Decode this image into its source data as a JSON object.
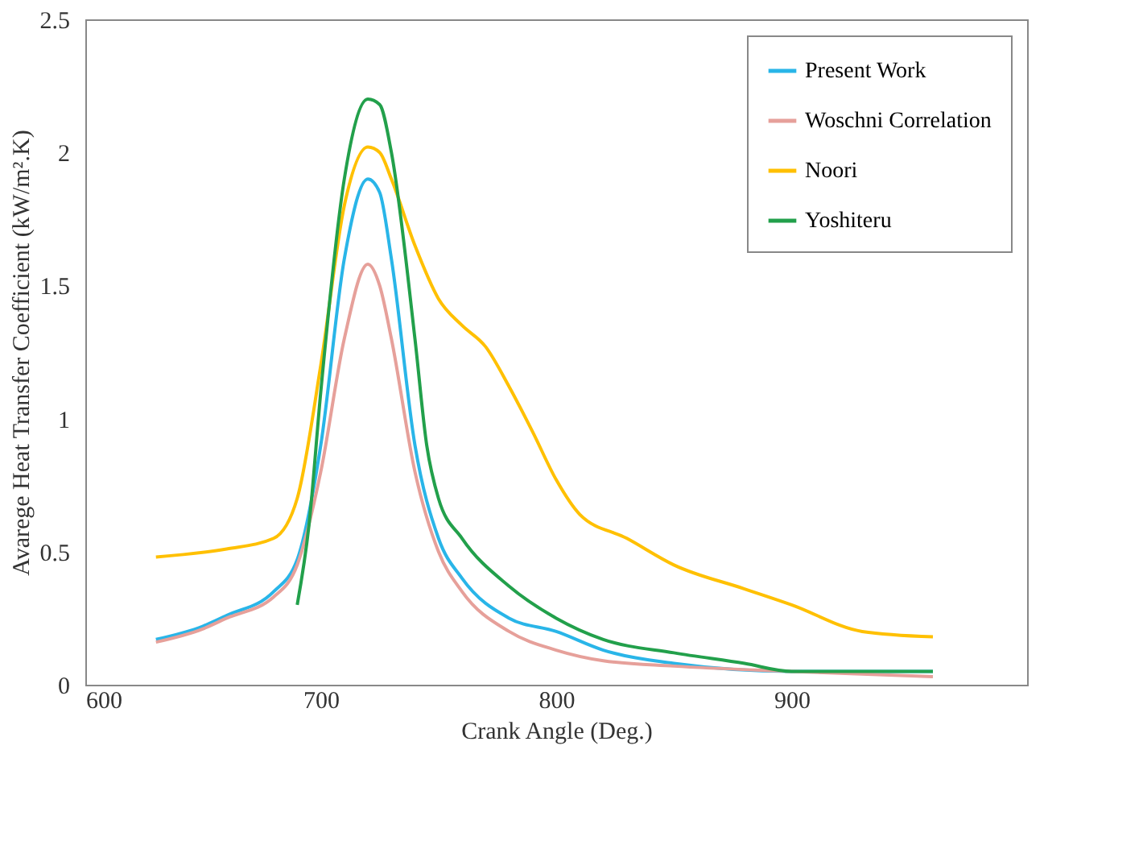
{
  "chart_data": {
    "type": "line",
    "xlabel": "Crank Angle (Deg.)",
    "ylabel": "Avarege Heat Transfer Coefficient (kW/m².K)",
    "xlim": [
      600,
      1000
    ],
    "xticks": [
      600,
      700,
      800,
      900
    ],
    "ylim": [
      0,
      2.5
    ],
    "yticks": [
      0,
      0.5,
      1,
      1.5,
      2,
      2.5
    ],
    "grid": false,
    "legend": "top right",
    "marker": "none",
    "line_style": "solid",
    "series": [
      {
        "name": "Present Work",
        "color": "#29b5e8",
        "x": [
          630,
          650,
          660,
          680,
          690,
          700,
          710,
          720,
          725,
          730,
          740,
          750,
          760,
          780,
          800,
          820,
          850,
          900,
          930,
          960
        ],
        "values": [
          0.17,
          0.22,
          0.26,
          0.35,
          0.47,
          0.9,
          1.6,
          1.9,
          1.85,
          1.6,
          0.9,
          0.55,
          0.4,
          0.25,
          0.2,
          0.13,
          0.08,
          0.05,
          0.05,
          0.05
        ]
      },
      {
        "name": "Woschni Correlation",
        "color": "#e6a09a",
        "x": [
          630,
          650,
          660,
          680,
          690,
          700,
          710,
          720,
          725,
          730,
          740,
          750,
          760,
          780,
          800,
          820,
          850,
          900,
          960
        ],
        "values": [
          0.16,
          0.21,
          0.25,
          0.33,
          0.45,
          0.8,
          1.3,
          1.58,
          1.5,
          1.3,
          0.8,
          0.5,
          0.35,
          0.2,
          0.13,
          0.09,
          0.07,
          0.05,
          0.03
        ]
      },
      {
        "name": "Noori",
        "color": "#ffc000",
        "x": [
          630,
          660,
          680,
          690,
          700,
          710,
          720,
          725,
          730,
          740,
          750,
          760,
          770,
          780,
          790,
          800,
          810,
          830,
          850,
          880,
          900,
          930,
          960
        ],
        "values": [
          0.48,
          0.51,
          0.55,
          0.7,
          1.2,
          1.8,
          2.02,
          2.0,
          1.9,
          1.65,
          1.45,
          1.35,
          1.27,
          1.12,
          0.95,
          0.77,
          0.64,
          0.55,
          0.45,
          0.36,
          0.3,
          0.2,
          0.18
        ]
      },
      {
        "name": "Yoshiteru",
        "color": "#22a04b",
        "x": [
          690,
          695,
          700,
          710,
          720,
          725,
          730,
          740,
          745,
          750,
          760,
          780,
          800,
          820,
          850,
          880,
          900,
          930,
          960
        ],
        "values": [
          0.3,
          0.6,
          1.1,
          1.9,
          2.2,
          2.18,
          2.0,
          1.3,
          0.9,
          0.7,
          0.55,
          0.37,
          0.25,
          0.17,
          0.12,
          0.08,
          0.05,
          0.05,
          0.05
        ]
      }
    ]
  }
}
